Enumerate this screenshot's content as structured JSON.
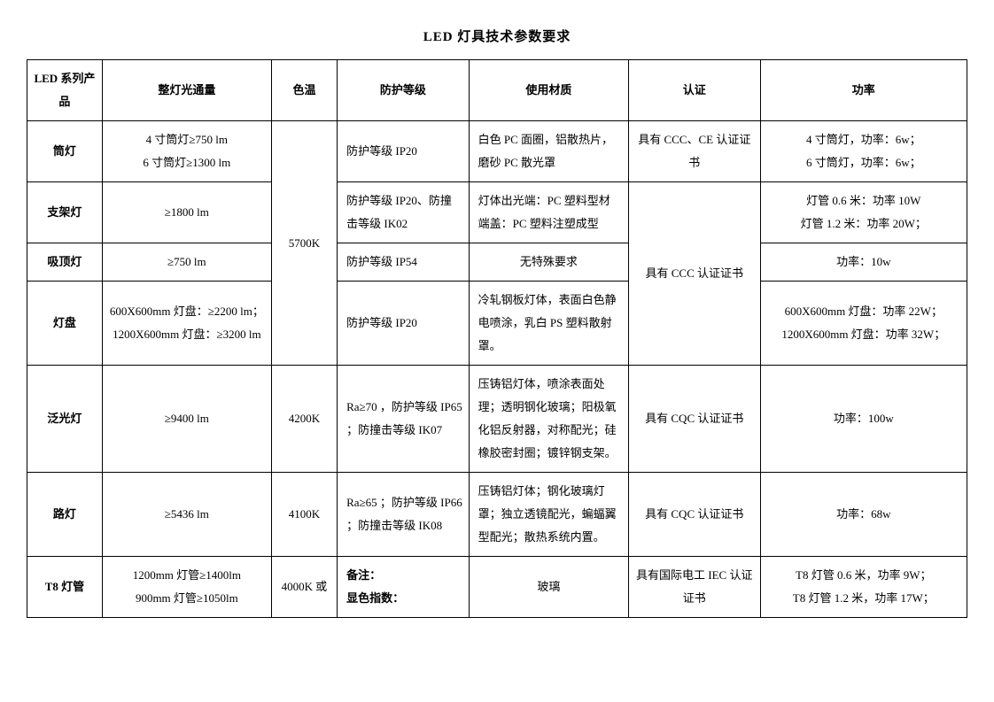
{
  "title": "LED 灯具技术参数要求",
  "columns": [
    "LED 系列产品",
    "整灯光通量",
    "色温",
    "防护等级",
    "使用材质",
    "认证",
    "功率"
  ],
  "cells": {
    "r1_product": "筒灯",
    "r1_lumens_a": "4 寸筒灯≥750 lm",
    "r1_lumens_b": "6 寸筒灯≥1300 lm",
    "temp_5700": "5700K",
    "r1_prot": "防护等级 IP20",
    "r1_mat": "白色 PC 面圈，铝散热片，磨砂 PC 散光罩",
    "r1_cert": "具有 CCC、CE 认证证书",
    "r1_power_a": "4 寸筒灯，功率：6w；",
    "r1_power_b": "6 寸筒灯，功率：6w；",
    "r2_product": "支架灯",
    "r2_lumens": "≥1800 lm",
    "r2_prot": "防护等级 IP20、防撞击等级 IK02",
    "r2_mat_a": "灯体出光端：PC 塑料型材",
    "r2_mat_b": "端盖：PC 塑料注塑成型",
    "cert_ccc": "具有 CCC 认证证书",
    "r2_power_a": "灯管 0.6 米：功率 10W",
    "r2_power_b": "灯管 1.2 米：功率 20W；",
    "r3_product": "吸顶灯",
    "r3_lumens": "≥750 lm",
    "r3_prot": "防护等级 IP54",
    "r3_mat": "无特殊要求",
    "r3_power": "功率：10w",
    "r4_product": "灯盘",
    "r4_lumens_a": "600X600mm 灯盘：≥2200 lm；",
    "r4_lumens_b": "1200X600mm 灯盘：≥3200 lm",
    "r4_prot": "防护等级 IP20",
    "r4_mat": "冷轧钢板灯体，表面白色静电喷涂，乳白 PS 塑料散射罩。",
    "r4_power_a": "600X600mm 灯盘：功率 22W；",
    "r4_power_b": "1200X600mm 灯盘：功率 32W；",
    "r5_product": "泛光灯",
    "r5_lumens": "≥9400 lm",
    "r5_temp": "4200K",
    "r5_prot": "Ra≥70 ，防护等级 IP65 ；防撞击等级 IK07",
    "r5_mat": "压铸铝灯体，喷涂表面处理；透明钢化玻璃；阳极氧化铝反射器，对称配光；硅橡胶密封圈；镀锌钢支架。",
    "r5_cert": "具有 CQC 认证证书",
    "r5_power": "功率：100w",
    "r6_product": "路灯",
    "r6_lumens": "≥5436  lm",
    "r6_temp": "4100K",
    "r6_prot": "Ra≥65 ；防护等级 IP66 ；防撞击等级 IK08",
    "r6_mat": "压铸铝灯体；钢化玻璃灯罩；独立透镜配光，蝙蝠翼型配光；散热系统内置。",
    "r6_cert": "具有 CQC 认证证书",
    "r6_power": "功率：68w",
    "r7_product": "T8 灯管",
    "r7_lumens_a": "1200mm 灯管≥1400lm",
    "r7_lumens_b": "900mm 灯管≥1050lm",
    "r7_temp": "4000K 或",
    "r7_prot_a": "备注：",
    "r7_prot_b": "显色指数：",
    "r7_mat": "玻璃",
    "r7_cert": "具有国际电工 IEC 认证证书",
    "r7_power_a": "T8 灯管 0.6 米，功率 9W；",
    "r7_power_b": "T8 灯管 1.2 米，功率 17W；"
  }
}
